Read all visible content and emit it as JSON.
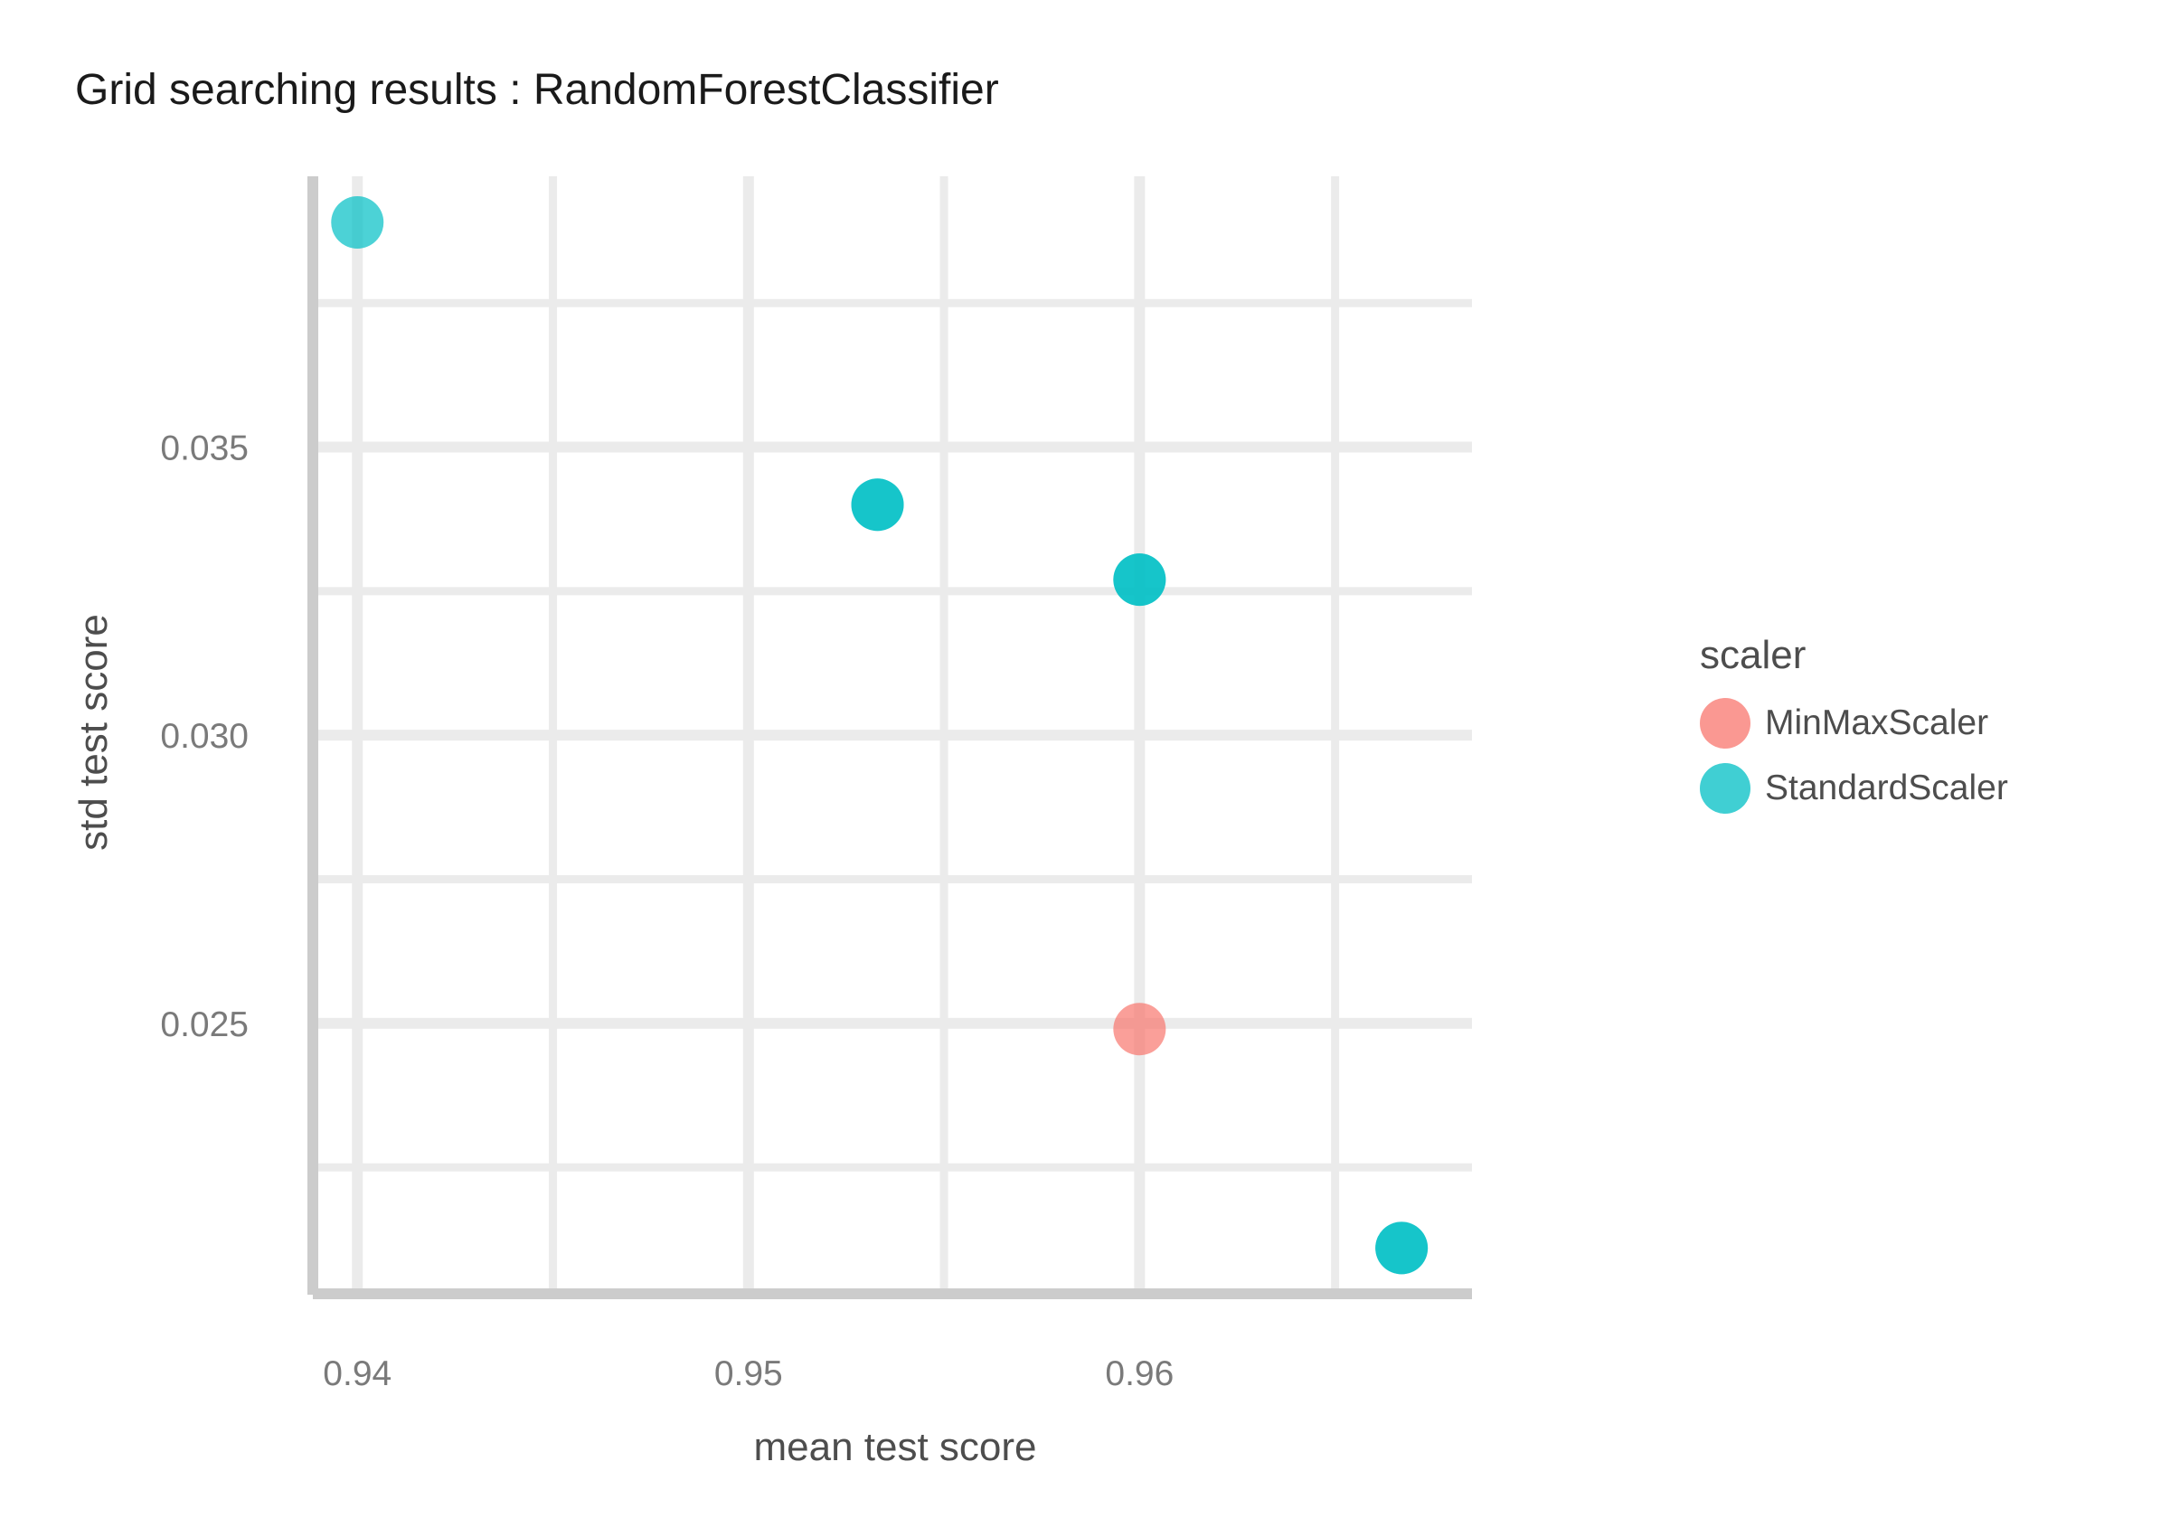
{
  "chart_data": {
    "type": "scatter",
    "title": "Grid searching results :  RandomForestClassifier",
    "xlabel": "mean test score",
    "ylabel": "std test score",
    "xlim": [
      0.939,
      0.9685
    ],
    "ylim": [
      0.0204,
      0.0397
    ],
    "x_ticks": [
      0.94,
      0.95,
      0.96
    ],
    "x_tick_labels": [
      "0.94",
      "0.95",
      "0.96"
    ],
    "y_ticks": [
      0.025,
      0.03,
      0.035
    ],
    "y_tick_labels": [
      "0.025",
      "0.030",
      "0.035"
    ],
    "grid": true,
    "legend": {
      "title": "scaler",
      "placement": "right"
    },
    "series": [
      {
        "name": "MinMaxScaler",
        "color": "#F8766D",
        "points": [
          {
            "x": 0.96,
            "y": 0.0249
          }
        ]
      },
      {
        "name": "StandardScaler",
        "color": "#00BFC4",
        "points": [
          {
            "x": 0.94,
            "y": 0.0389
          },
          {
            "x": 0.9533,
            "y": 0.034
          },
          {
            "x": 0.96,
            "y": 0.0327
          },
          {
            "x": 0.9667,
            "y": 0.0211
          },
          {
            "x": 0.9533,
            "y": 0.034
          },
          {
            "x": 0.96,
            "y": 0.0327
          },
          {
            "x": 0.9667,
            "y": 0.0211
          }
        ]
      }
    ]
  }
}
